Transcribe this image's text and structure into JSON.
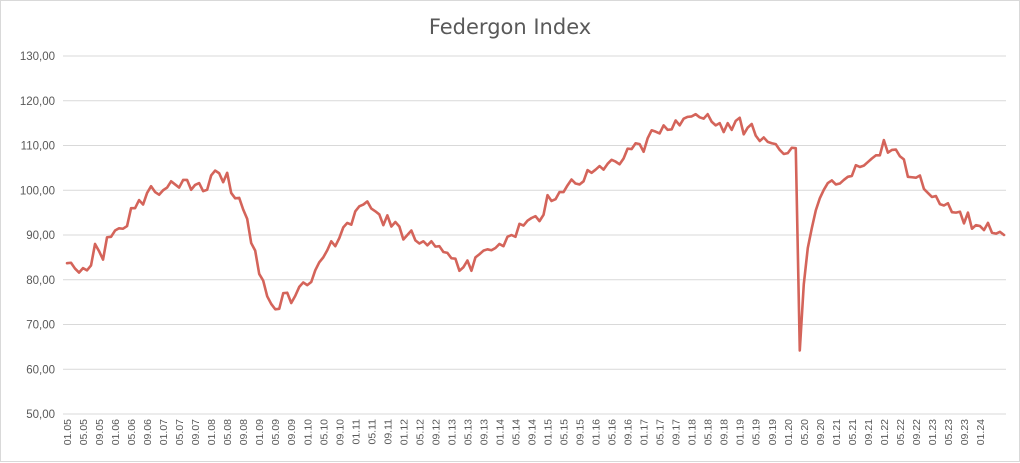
{
  "chart_data": {
    "type": "line",
    "title": "Federgon Index",
    "xlabel": "",
    "ylabel": "",
    "ylim": [
      50,
      130
    ],
    "y_ticks": [
      "50,00",
      "60,00",
      "70,00",
      "80,00",
      "90,00",
      "100,00",
      "110,00",
      "120,00",
      "130,00"
    ],
    "x_tick_labels": [
      "01.05",
      "05.05",
      "09.05",
      "01.06",
      "05.06",
      "09.06",
      "01.07",
      "05.07",
      "09.07",
      "01.08",
      "05.08",
      "09.08",
      "01.09",
      "05.09",
      "09.09",
      "01.10",
      "05.10",
      "09.10",
      "01.11",
      "05.11",
      "09.11",
      "01.12",
      "05.12",
      "09.12",
      "01.13",
      "05.13",
      "09.13",
      "01.14",
      "05.14",
      "09.14",
      "01.15",
      "05.15",
      "09.15",
      "01.16",
      "05.16",
      "09.16",
      "01.17",
      "05.17",
      "09.17",
      "01.18",
      "05.18",
      "09.18",
      "01.19",
      "05.19",
      "09.19",
      "01.20",
      "05.20",
      "09.20",
      "01.21",
      "05.21",
      "09.21",
      "01.22",
      "05.22",
      "09.22",
      "01.23",
      "05.23",
      "09.23",
      "01.24"
    ],
    "grid": true,
    "legend": "none",
    "line_color": "#d4645a",
    "series": [
      {
        "values": [
          83.7,
          83.8,
          82.5,
          81.6,
          82.6,
          82.1,
          83.2,
          88.0,
          86.4,
          84.5,
          89.5,
          89.6,
          91.0,
          91.5,
          91.4,
          92.0,
          96.0,
          96.0,
          97.8,
          96.8,
          99.4,
          100.9,
          99.6,
          99.0,
          100.0,
          100.6,
          102.0,
          101.3,
          100.6,
          102.3,
          102.3,
          100.1,
          101.2,
          101.6,
          99.8,
          100.1,
          103.3,
          104.4,
          103.8,
          101.8,
          103.9,
          99.4,
          98.2,
          98.3,
          95.7,
          93.6,
          88.2,
          86.5,
          81.3,
          79.8,
          76.3,
          74.6,
          73.4,
          73.5,
          77.0,
          77.1,
          74.8,
          76.4,
          78.4,
          79.4,
          78.8,
          79.5,
          82.1,
          83.9,
          85.0,
          86.6,
          88.6,
          87.5,
          89.3,
          91.7,
          92.7,
          92.3,
          95.3,
          96.4,
          96.8,
          97.5,
          95.9,
          95.3,
          94.6,
          92.2,
          94.4,
          91.9,
          92.9,
          91.9,
          89.0,
          90.0,
          91.0,
          88.8,
          88.1,
          88.6,
          87.7,
          88.6,
          87.4,
          87.5,
          86.2,
          86.0,
          84.8,
          84.7,
          82.0,
          82.8,
          84.3,
          82.0,
          85.0,
          85.7,
          86.5,
          86.8,
          86.6,
          87.1,
          88.0,
          87.5,
          89.6,
          90.0,
          89.6,
          92.5,
          92.1,
          93.2,
          93.8,
          94.2,
          93.1,
          94.5,
          98.9,
          97.6,
          98.0,
          99.6,
          99.6,
          101.1,
          102.4,
          101.5,
          101.3,
          102.0,
          104.5,
          103.9,
          104.6,
          105.4,
          104.6,
          105.9,
          106.8,
          106.4,
          105.8,
          107.1,
          109.3,
          109.2,
          110.5,
          110.3,
          108.6,
          111.6,
          113.4,
          113.1,
          112.7,
          114.5,
          113.5,
          113.6,
          115.6,
          114.5,
          116.0,
          116.4,
          116.5,
          117.0,
          116.3,
          116.0,
          117.0,
          115.3,
          114.5,
          115.0,
          113.0,
          115.0,
          113.5,
          115.5,
          116.2,
          112.5,
          114.0,
          114.8,
          112.2,
          111.0,
          111.8,
          110.8,
          110.5,
          110.3,
          109.0,
          108.1,
          108.3,
          109.5,
          109.4,
          64.2,
          79.0,
          87.1,
          91.5,
          95.5,
          98.2,
          100.1,
          101.6,
          102.2,
          101.3,
          101.5,
          102.3,
          103.0,
          103.2,
          105.6,
          105.2,
          105.5,
          106.3,
          107.1,
          107.8,
          107.8,
          111.2,
          108.4,
          109.0,
          109.1,
          107.6,
          106.9,
          103.0,
          102.9,
          102.8,
          103.3,
          100.3,
          99.4,
          98.5,
          98.7,
          96.9,
          96.6,
          97.1,
          95.1,
          95.0,
          95.2,
          92.6,
          95.0,
          91.4,
          92.2,
          92.0,
          91.1,
          92.7,
          90.5,
          90.3,
          90.7,
          90.0
        ]
      }
    ]
  }
}
